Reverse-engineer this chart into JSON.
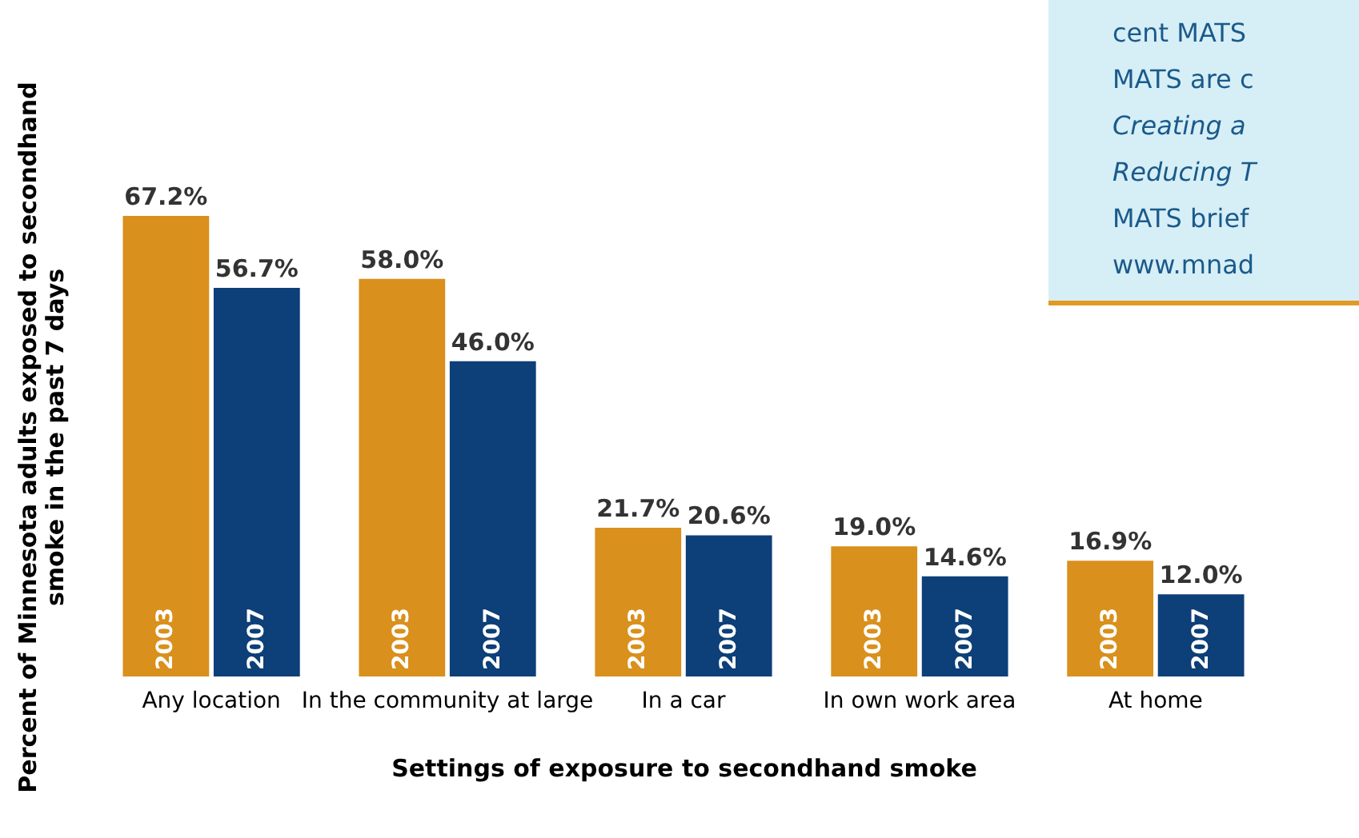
{
  "chart_data": {
    "type": "bar",
    "xlabel": "Settings of exposure to secondhand smoke",
    "ylabel": "Percent of Minnesota adults exposed to secondhand smoke in the past 7 days",
    "categories": [
      "Any location",
      "In the community at large",
      "In a car",
      "In own work area",
      "At home"
    ],
    "series": [
      {
        "name": "2003",
        "color": "#d9901c",
        "values": [
          67.2,
          58.0,
          21.7,
          19.0,
          16.9
        ],
        "value_labels": [
          "67.2%",
          "58.0%",
          "21.7%",
          "19.0%",
          "16.9%"
        ]
      },
      {
        "name": "2007",
        "color": "#0d3f78",
        "values": [
          56.7,
          46.0,
          20.6,
          14.6,
          12.0
        ],
        "value_labels": [
          "56.7%",
          "46.0%",
          "20.6%",
          "14.6%",
          "12.0%"
        ]
      }
    ],
    "legend": false,
    "annotations": [
      "cent MATS",
      "MATS are c",
      "Creating a",
      "Reducing T",
      "MATS brief",
      "www.mnad"
    ]
  }
}
